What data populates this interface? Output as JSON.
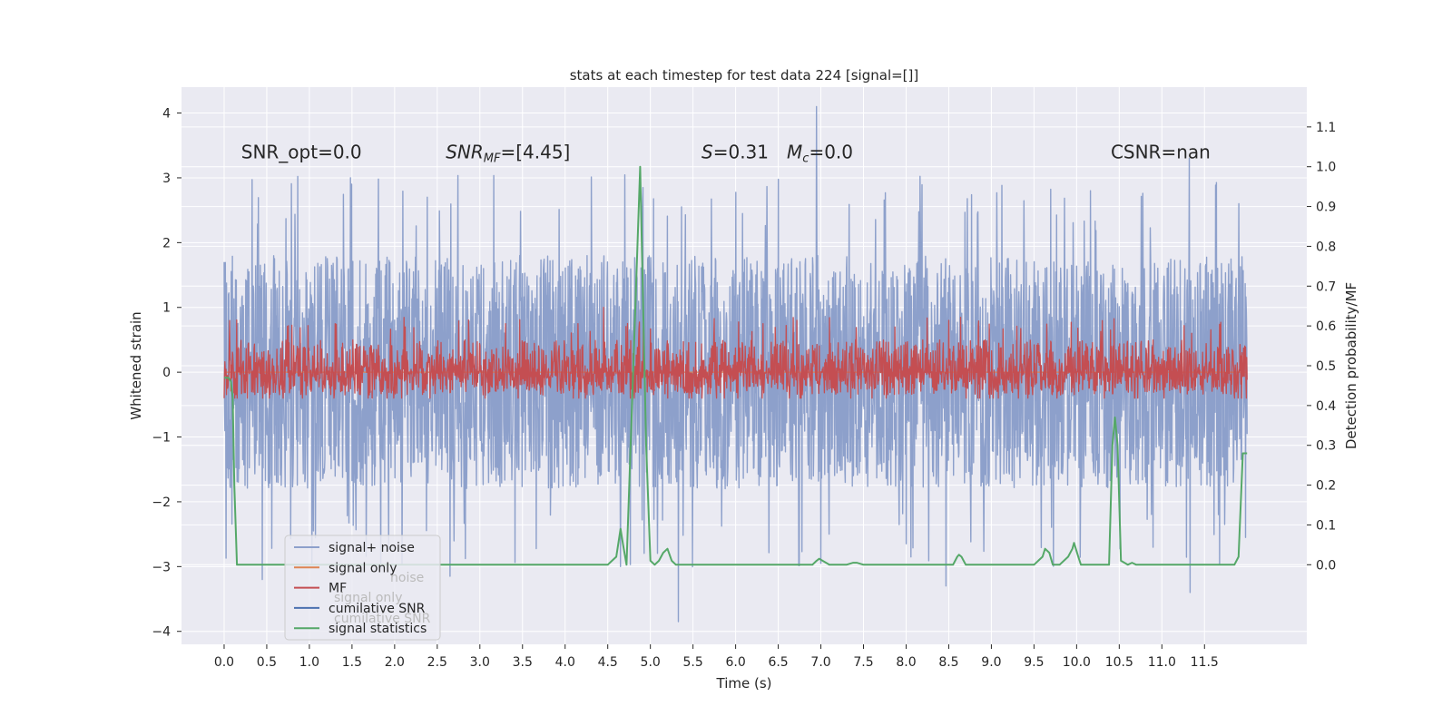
{
  "chart_data": {
    "type": "line",
    "title": "stats at each timestep for test data 224 [signal=[]]",
    "xlabel": "Time (s)",
    "ylabel": "Whitened strain",
    "ylabel_right": "Detection probability/MF",
    "xlim": [
      -0.5,
      12.7
    ],
    "ylim": [
      -4.2,
      4.4
    ],
    "ylim_right": [
      -0.2,
      1.2
    ],
    "x_ticks": [
      "0.0",
      "0.5",
      "1.0",
      "1.5",
      "2.0",
      "2.5",
      "3.0",
      "3.5",
      "4.0",
      "4.5",
      "5.0",
      "5.5",
      "6.0",
      "6.5",
      "7.0",
      "7.5",
      "8.0",
      "8.5",
      "9.0",
      "9.5",
      "10.0",
      "10.5",
      "11.0",
      "11.5"
    ],
    "y_ticks": [
      -4,
      -3,
      -2,
      -1,
      0,
      1,
      2,
      3,
      4
    ],
    "y_ticks_right": [
      0.0,
      0.1,
      0.2,
      0.3,
      0.4,
      0.5,
      0.6,
      0.7,
      0.8,
      0.9,
      1.0,
      1.1
    ],
    "grid": true,
    "background": "#eaeaf2",
    "annotations": [
      {
        "text": "SNR_opt=0.0",
        "italic": false,
        "x": 0.2,
        "y": 3.3
      },
      {
        "text": "SNR_MF=[4.45]",
        "italic": true,
        "x": 2.6,
        "y": 3.3
      },
      {
        "text": "S=0.31   M_c=0.0",
        "italic": true,
        "x": 5.6,
        "y": 3.3
      },
      {
        "text": "CSNR=nan",
        "italic": false,
        "x": 10.4,
        "y": 3.3
      }
    ],
    "legend": {
      "position": "lower-left",
      "entries": [
        {
          "label": "signal+ noise",
          "color": "#8da0cb"
        },
        {
          "label": "signal only",
          "color": "#dd8452"
        },
        {
          "label": "MF",
          "color": "#c44e52"
        },
        {
          "label": "cumilative SNR",
          "color": "#4c72b0"
        },
        {
          "label": "signal statistics",
          "color": "#55a868"
        }
      ],
      "ghost_labels": [
        "noise",
        "signal only",
        "cumilative SNR",
        "signal statistics"
      ]
    },
    "series": [
      {
        "name": "signal+ noise",
        "axis": "left",
        "color": "#8da0cb",
        "x_range": [
          0.0,
          12.0
        ],
        "approx_envelope": {
          "typical": [
            -1.8,
            1.8
          ],
          "min": -3.85,
          "max": 4.1
        },
        "peaks": [
          [
            6.95,
            4.1
          ],
          [
            5.33,
            -3.85
          ],
          [
            11.33,
            -3.4
          ],
          [
            11.32,
            3.3
          ],
          [
            2.65,
            -3.15
          ],
          [
            0.45,
            -3.2
          ],
          [
            8.47,
            -3.3
          ],
          [
            7.0,
            -2.95
          ],
          [
            4.65,
            -3.0
          ],
          [
            11.98,
            2.65
          ],
          [
            11.98,
            -2.55
          ],
          [
            0.0,
            -2.6
          ],
          [
            0.0,
            1.7
          ]
        ]
      },
      {
        "name": "MF",
        "axis": "left",
        "color": "#c44e52",
        "x_range": [
          0.0,
          12.0
        ],
        "approx_envelope": {
          "typical": [
            -0.35,
            0.5
          ],
          "min": -0.4,
          "max": 1.0
        },
        "peaks": [
          [
            4.45,
            1.0
          ],
          [
            4.92,
            0.75
          ],
          [
            6.72,
            0.8
          ],
          [
            8.5,
            0.8
          ],
          [
            1.3,
            0.75
          ],
          [
            3.3,
            0.75
          ],
          [
            4.15,
            0.75
          ],
          [
            10.4,
            0.65
          ],
          [
            11.35,
            0.6
          ]
        ]
      },
      {
        "name": "signal only",
        "axis": "left",
        "color": "#dd8452",
        "constant": 0.0
      },
      {
        "name": "signal statistics",
        "axis": "right",
        "color": "#55a868",
        "x": [
          0.0,
          0.05,
          0.08,
          0.1,
          0.12,
          0.15,
          0.18,
          1.0,
          2.0,
          3.0,
          4.0,
          4.4,
          4.5,
          4.55,
          4.6,
          4.65,
          4.68,
          4.72,
          4.8,
          4.88,
          4.95,
          5.0,
          5.05,
          5.1,
          5.15,
          5.2,
          5.25,
          5.3,
          6.0,
          6.9,
          6.95,
          6.98,
          7.02,
          7.1,
          7.3,
          7.38,
          7.42,
          7.5,
          8.0,
          8.5,
          8.55,
          8.6,
          8.62,
          8.65,
          8.7,
          9.0,
          9.5,
          9.6,
          9.63,
          9.68,
          9.72,
          9.8,
          9.9,
          9.95,
          9.97,
          10.02,
          10.05,
          10.1,
          10.38,
          10.42,
          10.45,
          10.48,
          10.52,
          10.6,
          10.65,
          10.7,
          11.0,
          11.5,
          11.85,
          11.9,
          11.95,
          12.0
        ],
        "y": [
          0.47,
          0.47,
          0.46,
          0.42,
          0.2,
          0.0,
          0.0,
          0.0,
          0.0,
          0.0,
          0.0,
          0.0,
          0.0,
          0.01,
          0.02,
          0.09,
          0.05,
          0.0,
          0.5,
          1.0,
          0.3,
          0.01,
          0.0,
          0.01,
          0.03,
          0.04,
          0.01,
          0.0,
          0.0,
          0.0,
          0.01,
          0.015,
          0.01,
          0.0,
          0.0,
          0.005,
          0.005,
          0.0,
          0.0,
          0.0,
          0.0,
          0.02,
          0.025,
          0.02,
          0.0,
          0.0,
          0.0,
          0.02,
          0.04,
          0.03,
          0.0,
          0.0,
          0.02,
          0.04,
          0.055,
          0.02,
          0.0,
          0.0,
          0.0,
          0.3,
          0.37,
          0.3,
          0.01,
          0.0,
          0.005,
          0.0,
          0.0,
          0.0,
          0.0,
          0.02,
          0.28,
          0.28
        ]
      }
    ]
  }
}
